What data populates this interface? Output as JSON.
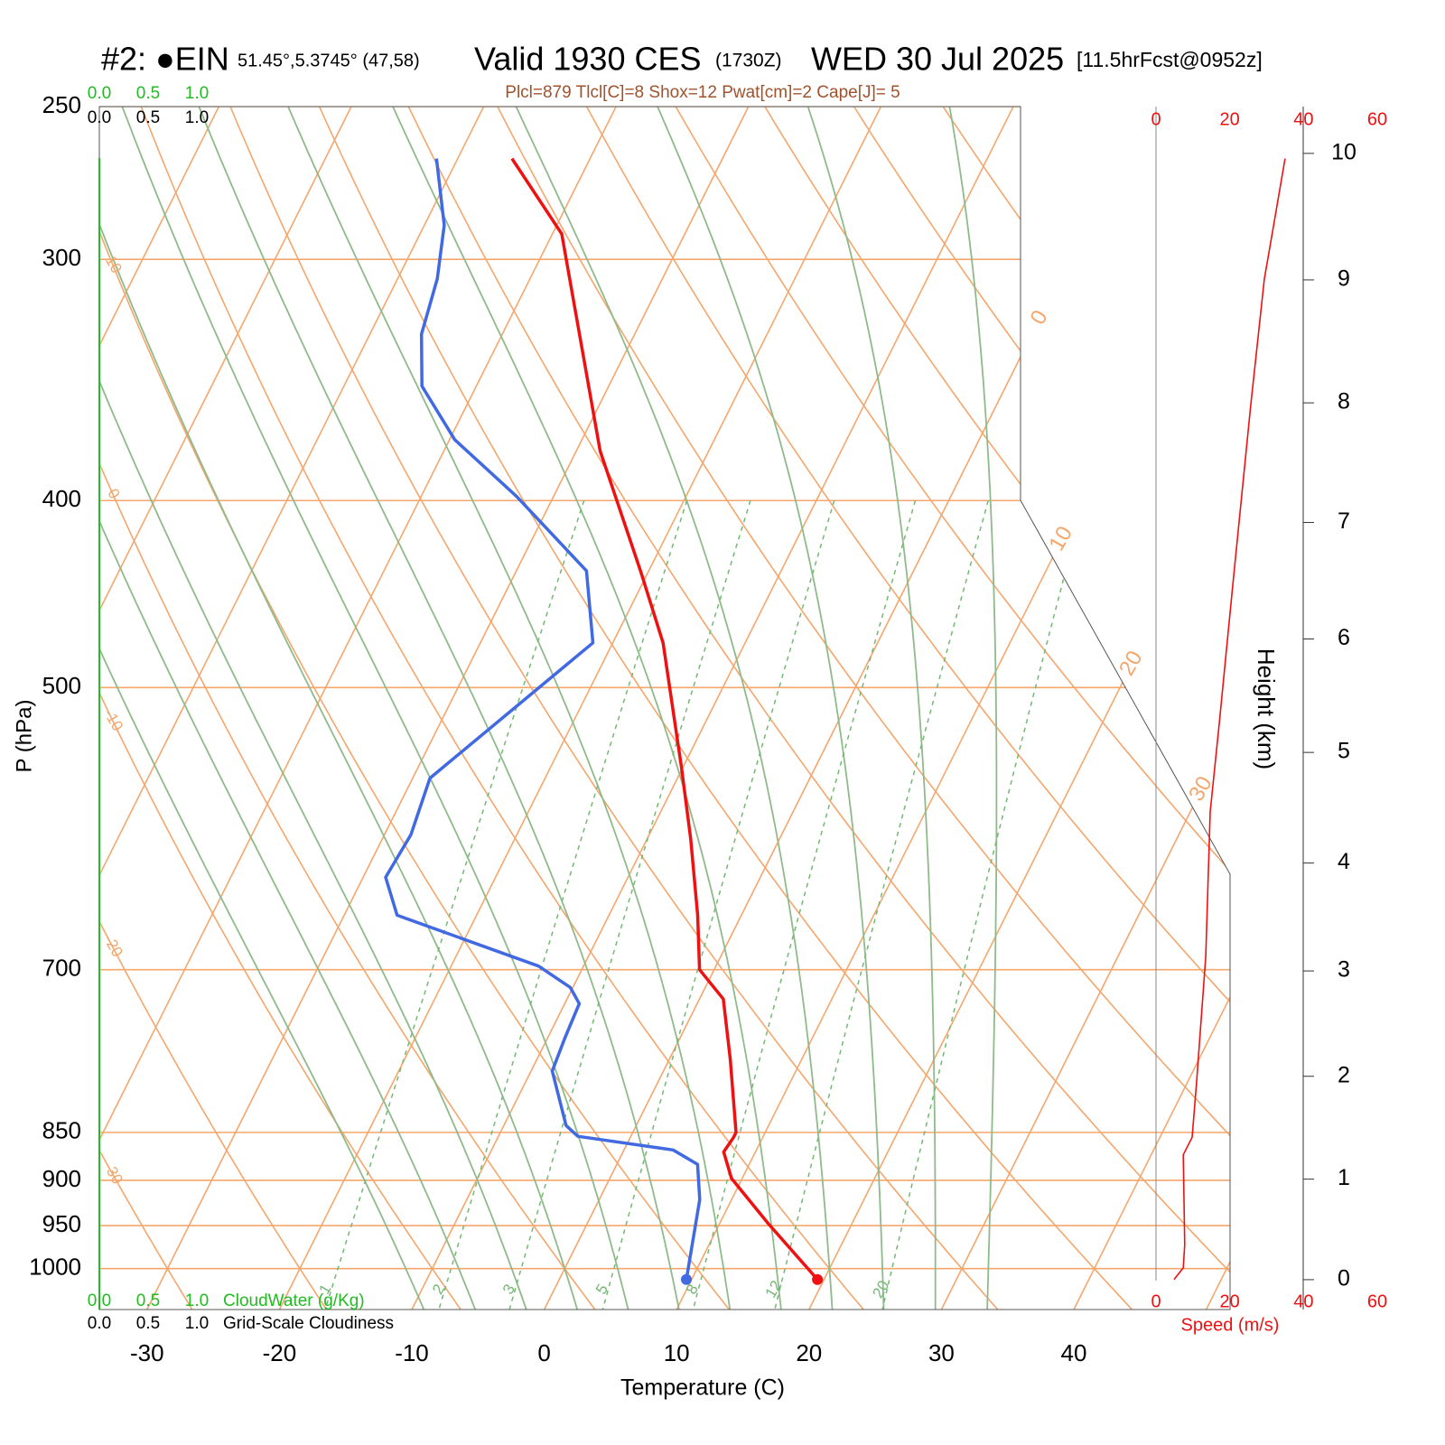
{
  "chart_data": {
    "type": "skewt",
    "title_parts": [
      "#2: ●EIN",
      "51.45°,5.3745° (47,58)",
      "Valid 1930 CES",
      "(1730Z)",
      "WED 30 Jul 2025",
      "[11.5hrFcst@0952z]"
    ],
    "subtitle": "Plcl=879 Tlcl[C]=8 Shox=12 Pwat[cm]=2 Cape[J]= 5",
    "xlabel": "Temperature (C)",
    "ylabel": "P (hPa)",
    "xlim": [
      -33.6,
      51.8
    ],
    "xticks": [
      -30,
      -20,
      -10,
      0,
      10,
      20,
      30,
      40
    ],
    "ylim": [
      1050,
      250
    ],
    "yticks": [
      250,
      300,
      400,
      500,
      700,
      850,
      900,
      950,
      1000
    ],
    "isotherms": [
      -80,
      -70,
      -60,
      -50,
      -40,
      -30,
      -20,
      -10,
      0,
      10,
      20,
      30,
      40,
      50
    ],
    "isotherm_labels": [
      0,
      10,
      20,
      30
    ],
    "dry_adiabats": [
      -30,
      -20,
      -10,
      0,
      10,
      20,
      30,
      40,
      50,
      60,
      70,
      80,
      90,
      100,
      110,
      120,
      130,
      140,
      150,
      160,
      170
    ],
    "dry_adiabat_labels": [
      10,
      0,
      -10,
      -20,
      -30
    ],
    "moist_adiabats": [
      -12,
      -8,
      -4,
      0,
      4,
      8,
      12,
      16,
      20,
      24,
      28,
      32
    ],
    "mixing_ratios": [
      1,
      2,
      3,
      5,
      8,
      12,
      20
    ],
    "line_color": "#f5a66c",
    "moist_color": "#8fba8a",
    "mixing_color": "#74b874",
    "temperature": {
      "color": "#ee1111",
      "p": [
        1013,
        948,
        898,
        870,
        855,
        850,
        779,
        725,
        700,
        656,
        599,
        550,
        474,
        436,
        377,
        291,
        266
      ],
      "t": [
        19.5,
        13.7,
        9.2,
        7.6,
        7.8,
        7.8,
        4.6,
        1.8,
        -1.1,
        -3.3,
        -6.7,
        -10.1,
        -16.2,
        -20.5,
        -28.2,
        -39.3,
        -45.9
      ]
    },
    "dewpoint": {
      "color": "#4169e1",
      "p": [
        1013,
        921,
        883,
        868,
        854,
        843,
        790,
        759,
        729,
        715,
        697,
        656,
        627,
        596,
        557,
        474,
        435,
        398,
        372,
        349,
        328,
        307,
        288,
        266
      ],
      "t": [
        9.6,
        7.6,
        6.1,
        3.7,
        -4.0,
        -5.3,
        -8.4,
        -8.7,
        -8.9,
        -10.2,
        -13.4,
        -26.0,
        -28.3,
        -28.0,
        -28.7,
        -21.5,
        -24.7,
        -32.8,
        -39.6,
        -44.1,
        -46.1,
        -47.0,
        -48.5,
        -51.6
      ]
    },
    "wind_speed": {
      "color": "#ee1111",
      "p": [
        1013,
        999,
        972,
        873,
        855,
        801,
        689,
        580,
        521,
        443,
        357,
        307,
        288,
        266
      ],
      "values": [
        4.9,
        7.4,
        7.8,
        7.4,
        9.8,
        11.0,
        13.5,
        14.7,
        17.2,
        20.8,
        25.7,
        29.4,
        31.9,
        35.0
      ]
    },
    "speed_label": "Speed (m/s)",
    "speed_lim": [
      0,
      60
    ],
    "speed_ticks": [
      0,
      20,
      40,
      60
    ],
    "height_label": "Height (km)",
    "height_ticks": [
      0,
      1,
      2,
      3,
      4,
      5,
      6,
      7,
      8,
      9,
      10
    ],
    "cloud_lim": [
      0,
      1
    ],
    "cloud_ticks": [
      {
        "value": 0,
        "label": "0.0"
      },
      {
        "value": 0.5,
        "label": "0.5"
      },
      {
        "value": 1,
        "label": "1.0"
      }
    ],
    "cloud_water_label": "CloudWater (g/Kg)",
    "cloudiness_label": "Grid-Scale Cloudiness"
  }
}
